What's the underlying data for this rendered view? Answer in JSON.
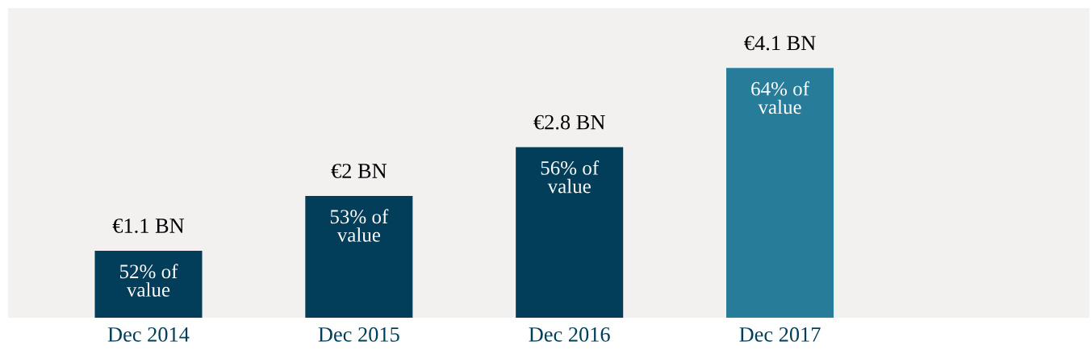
{
  "chart_data": {
    "type": "bar",
    "categories": [
      "Dec 2014",
      "Dec 2015",
      "Dec 2016",
      "Dec 2017"
    ],
    "values": [
      1.1,
      2,
      2.8,
      4.1
    ],
    "colors": [
      "#023d5a",
      "#023d5a",
      "#023d5a",
      "#277c99"
    ],
    "value_labels": [
      "€1.1 BN",
      "€2 BN",
      "€2.8 BN",
      "€4.1 BN"
    ],
    "annotations": [
      {
        "text": "52% of\nvalue",
        "x": "Dec 2014",
        "y": 1.1
      },
      {
        "text": "53% of\nvalue",
        "x": "Dec 2015",
        "y": 2
      },
      {
        "text": "56% of\nvalue",
        "x": "Dec 2016",
        "y": 2.8
      },
      {
        "text": "64% of\nvalue",
        "x": "Dec 2017",
        "y": 4.1
      }
    ],
    "grid": false,
    "legend": false
  }
}
